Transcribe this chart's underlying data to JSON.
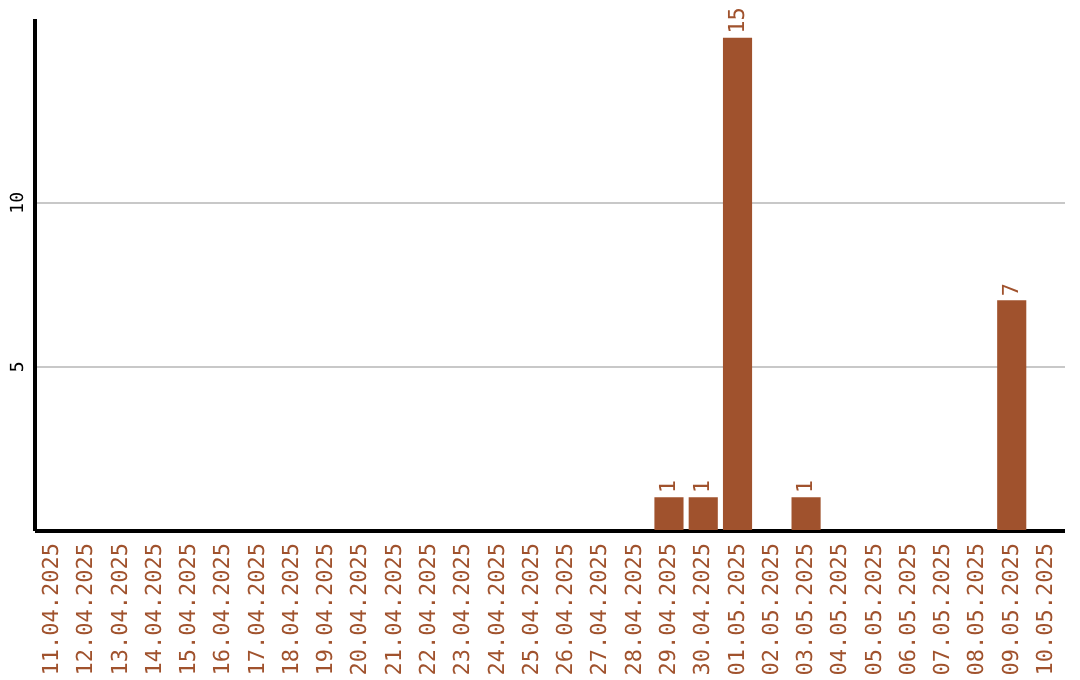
{
  "chart_data": {
    "type": "bar",
    "categories": [
      "11.04.2025",
      "12.04.2025",
      "13.04.2025",
      "14.04.2025",
      "15.04.2025",
      "16.04.2025",
      "17.04.2025",
      "18.04.2025",
      "19.04.2025",
      "20.04.2025",
      "21.04.2025",
      "22.04.2025",
      "23.04.2025",
      "24.04.2025",
      "25.04.2025",
      "26.04.2025",
      "27.04.2025",
      "28.04.2025",
      "29.04.2025",
      "30.04.2025",
      "01.05.2025",
      "02.05.2025",
      "03.05.2025",
      "04.05.2025",
      "05.05.2025",
      "06.05.2025",
      "07.05.2025",
      "08.05.2025",
      "09.05.2025",
      "10.05.2025"
    ],
    "values": [
      0,
      0,
      0,
      0,
      0,
      0,
      0,
      0,
      0,
      0,
      0,
      0,
      0,
      0,
      0,
      0,
      0,
      0,
      1,
      1,
      15,
      0,
      1,
      0,
      0,
      0,
      0,
      0,
      7,
      0
    ],
    "value_labels": [
      null,
      null,
      null,
      null,
      null,
      null,
      null,
      null,
      null,
      null,
      null,
      null,
      null,
      null,
      null,
      null,
      null,
      null,
      "1",
      "1",
      "15",
      null,
      "1",
      null,
      null,
      null,
      null,
      null,
      "7",
      null
    ],
    "color": "#a0522d",
    "ylim": [
      0,
      15.6
    ],
    "yticks": [
      5,
      10
    ],
    "grid": "y"
  }
}
